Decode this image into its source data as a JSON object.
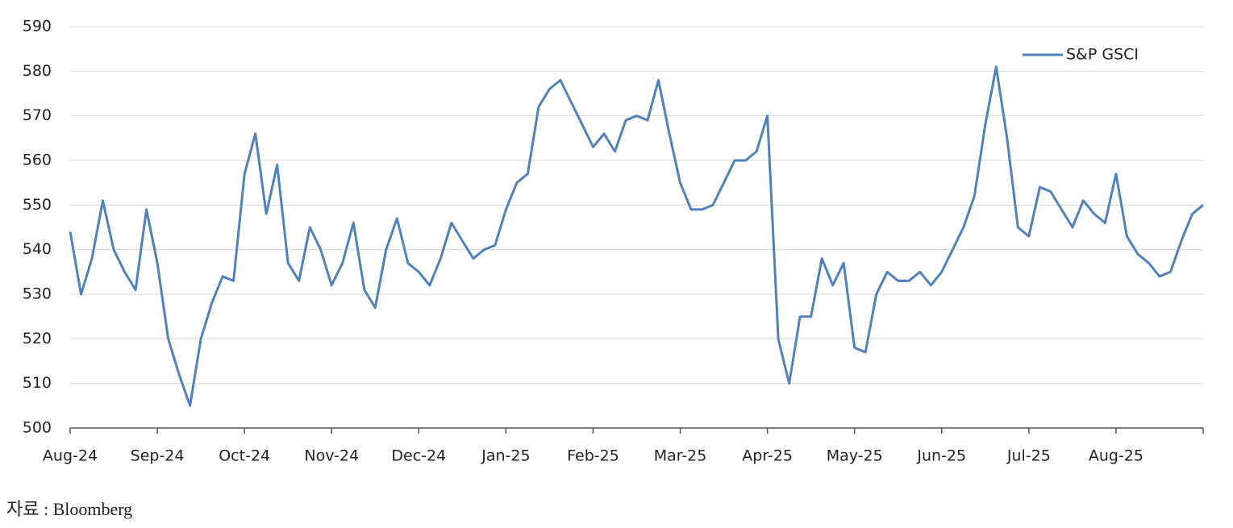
{
  "chart_data": {
    "type": "line",
    "source": "자료 : Bloomberg",
    "categories": [
      "Aug-24",
      null,
      null,
      null,
      null,
      null,
      null,
      null,
      "Sep-24",
      null,
      null,
      null,
      null,
      null,
      null,
      null,
      "Oct-24",
      null,
      null,
      null,
      null,
      null,
      null,
      null,
      "Nov-24",
      null,
      null,
      null,
      null,
      null,
      null,
      null,
      "Dec-24",
      null,
      null,
      null,
      null,
      null,
      null,
      null,
      "Jan-25",
      null,
      null,
      null,
      null,
      null,
      null,
      null,
      "Feb-25",
      null,
      null,
      null,
      null,
      null,
      null,
      null,
      "Mar-25",
      null,
      null,
      null,
      null,
      null,
      null,
      null,
      "Apr-25",
      null,
      null,
      null,
      null,
      null,
      null,
      null,
      "May-25",
      null,
      null,
      null,
      null,
      null,
      null,
      null,
      "Jun-25",
      null,
      null,
      null,
      null,
      null,
      null,
      null,
      "Jul-25",
      null,
      null,
      null,
      null,
      null,
      null,
      null,
      "Aug-25",
      null,
      null,
      null,
      null,
      null,
      null,
      null,
      null
    ],
    "series": [
      {
        "name": "S&P GSCI",
        "color": "#4f81bd",
        "values": [
          544,
          530,
          538,
          551,
          540,
          535,
          531,
          549,
          537,
          520,
          512,
          505,
          520,
          528,
          534,
          533,
          557,
          566,
          548,
          559,
          537,
          533,
          545,
          540,
          532,
          537,
          546,
          531,
          527,
          540,
          547,
          537,
          535,
          532,
          538,
          546,
          542,
          538,
          540,
          541,
          549,
          555,
          557,
          572,
          576,
          578,
          573,
          568,
          563,
          566,
          562,
          569,
          570,
          569,
          578,
          566,
          555,
          549,
          549,
          550,
          555,
          560,
          560,
          562,
          570,
          520,
          510,
          525,
          525,
          538,
          532,
          537,
          518,
          517,
          530,
          535,
          533,
          533,
          535,
          532,
          535,
          540,
          545,
          552,
          568,
          581,
          565,
          545,
          543,
          554,
          553,
          549,
          545,
          551,
          548,
          546,
          557,
          543,
          539,
          537,
          534,
          535,
          542,
          548,
          550
        ]
      }
    ],
    "ylim": [
      500,
      590
    ],
    "yticks": [
      500,
      510,
      520,
      530,
      540,
      550,
      560,
      570,
      580,
      590
    ],
    "grid": true,
    "legend": "top-right"
  }
}
